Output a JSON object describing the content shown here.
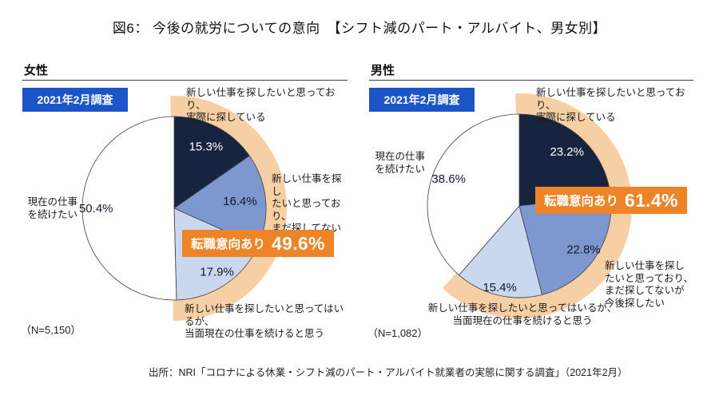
{
  "title": "図6： 今後の就労についての意向　【シフト減のパート・アルバイト、男女別】",
  "source": "出所：NRI「コロナによる休業・シフト減のパート・アルバイト就業者の実態に関する調査」（2021年2月）",
  "colors": {
    "badge_blue": "#1b55c8",
    "highlight_orange": "#ee8428",
    "arc_orange": "#f7cfa4",
    "navy": "#172440",
    "medium_blue": "#7c98ce",
    "light_blue": "#c9d7ef",
    "white_slice": "#ffffff",
    "outline": "#3f3f3f"
  },
  "chart_data": [
    {
      "type": "pie",
      "group_label": "女性",
      "survey_label": "2021年2月調査",
      "n_label": "（N=5,150）",
      "start_angle_deg": 0,
      "direction": "clockwise",
      "slices": [
        {
          "label": "新しい仕事を探したいと思っており、実際に探している",
          "value_pct": 15.3,
          "color": "#172440",
          "text_color": "#ffffff",
          "label_r": 0.75,
          "highlighted": true
        },
        {
          "label": "新しい仕事を探したいと思っており、まだ探してないが今後探したい",
          "value_pct": 16.4,
          "color": "#7c98ce",
          "text_color": "#10182b",
          "label_r": 0.72,
          "highlighted": true
        },
        {
          "label": "新しい仕事を探したいと思ってはいるが、当面現在の仕事を続けると思う",
          "value_pct": 17.9,
          "color": "#c9d7ef",
          "text_color": "#10182b",
          "label_r": 0.84,
          "highlighted": true
        },
        {
          "label": "現在の仕事を続けたい",
          "value_pct": 50.4,
          "color": "#ffffff",
          "text_color": "#10182b",
          "label_r": 0.85,
          "highlighted": false
        }
      ],
      "highlight": {
        "label": "転職意向あり",
        "value_label": "49.6%",
        "covers_pct": 49.6
      },
      "labels": {
        "top_right": "新しい仕事を探したいと思っており、\n実際に探している",
        "right": "新しい仕事を探し\nたいと思っており、\nまだ探してないが\n今後探したい",
        "bottom": "新しい仕事を探したいと思ってはいるが、\n当面現在の仕事を続けると思う",
        "left": "現在の仕事\nを続けたい"
      }
    },
    {
      "type": "pie",
      "group_label": "男性",
      "survey_label": "2021年2月調査",
      "n_label": "（N=1,082）",
      "start_angle_deg": 0,
      "direction": "clockwise",
      "slices": [
        {
          "label": "新しい仕事を探したいと思っており、実際に探している",
          "value_pct": 23.2,
          "color": "#172440",
          "text_color": "#ffffff",
          "label_r": 0.78,
          "highlighted": true
        },
        {
          "label": "新しい仕事を探したいと思っており、まだ探してないが今後探したい",
          "value_pct": 22.8,
          "color": "#7c98ce",
          "text_color": "#10182b",
          "label_r": 0.85,
          "highlighted": true
        },
        {
          "label": "新しい仕事を探したいと思ってはいるが、当面現在の仕事を続けると思う",
          "value_pct": 15.4,
          "color": "#c9d7ef",
          "text_color": "#10182b",
          "label_r": 0.92,
          "highlighted": true
        },
        {
          "label": "現在の仕事を続けたい",
          "value_pct": 38.6,
          "color": "#ffffff",
          "text_color": "#10182b",
          "label_r": 0.82,
          "highlighted": false
        }
      ],
      "highlight": {
        "label": "転職意向あり",
        "value_label": "61.4%",
        "covers_pct": 61.4
      },
      "labels": {
        "top_right": "新しい仕事を探したいと思っており、\n実際に探している",
        "right": "新しい仕事を探し\nたいと思っており、\nまだ探してないが\n今後探したい",
        "bottom": "新しい仕事を探したいと思ってはいるが、\n当面現在の仕事を続けると思う",
        "left": "現在の仕事\nを続けたい"
      }
    }
  ]
}
